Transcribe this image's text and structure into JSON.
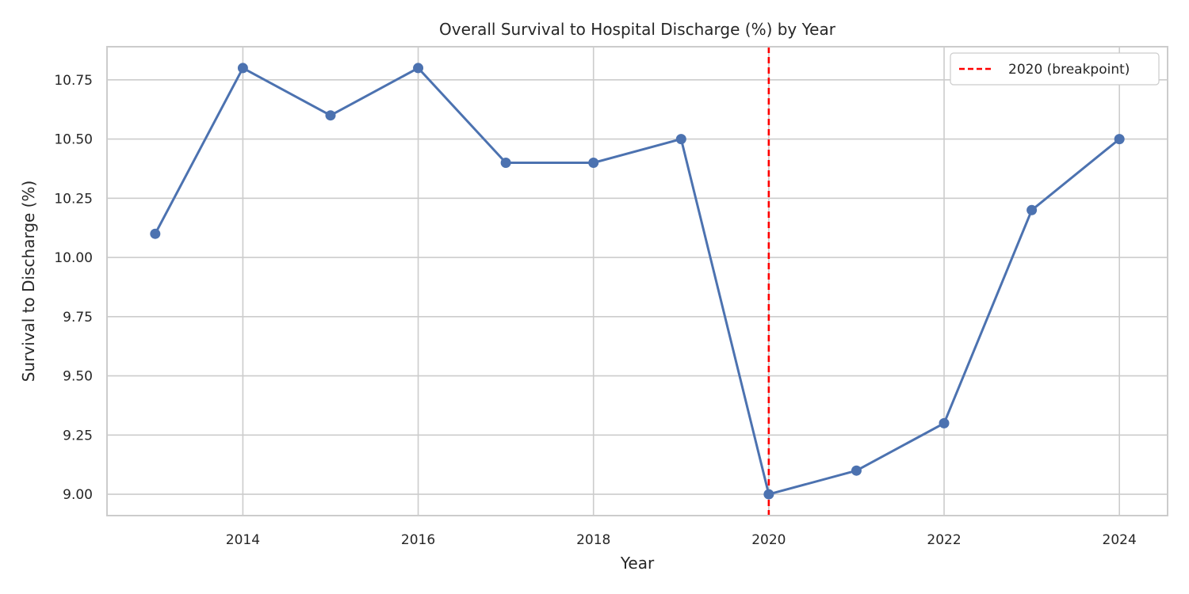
{
  "chart_data": {
    "type": "line",
    "title": "Overall Survival to Hospital Discharge (%) by Year",
    "xlabel": "Year",
    "ylabel": "Survival to Discharge (%)",
    "x": [
      2013,
      2014,
      2015,
      2016,
      2017,
      2018,
      2019,
      2020,
      2021,
      2022,
      2023,
      2024
    ],
    "series": [
      {
        "values": [
          10.1,
          10.8,
          10.6,
          10.8,
          10.4,
          10.4,
          10.5,
          9.0,
          9.1,
          9.3,
          10.2,
          10.5
        ]
      }
    ],
    "xlim": [
      2012.45,
      2024.55
    ],
    "ylim": [
      8.91,
      10.89
    ],
    "xticks": [
      2014,
      2016,
      2018,
      2020,
      2022,
      2024
    ],
    "xtick_labels": [
      "2014",
      "2016",
      "2018",
      "2020",
      "2022",
      "2024"
    ],
    "yticks": [
      9.0,
      9.25,
      9.5,
      9.75,
      10.0,
      10.25,
      10.5,
      10.75
    ],
    "ytick_labels": [
      "9.00",
      "9.25",
      "9.50",
      "9.75",
      "10.00",
      "10.25",
      "10.50",
      "10.75"
    ],
    "reference_line": {
      "x": 2020,
      "label": "2020 (breakpoint)",
      "color": "#ff0000",
      "style": "dashed"
    },
    "grid": true,
    "legend": {
      "position": "top-right"
    },
    "colors": {
      "series": "#4c72b0",
      "grid": "#cccccc",
      "spine": "#cccccc",
      "reference": "#ff0000"
    }
  }
}
